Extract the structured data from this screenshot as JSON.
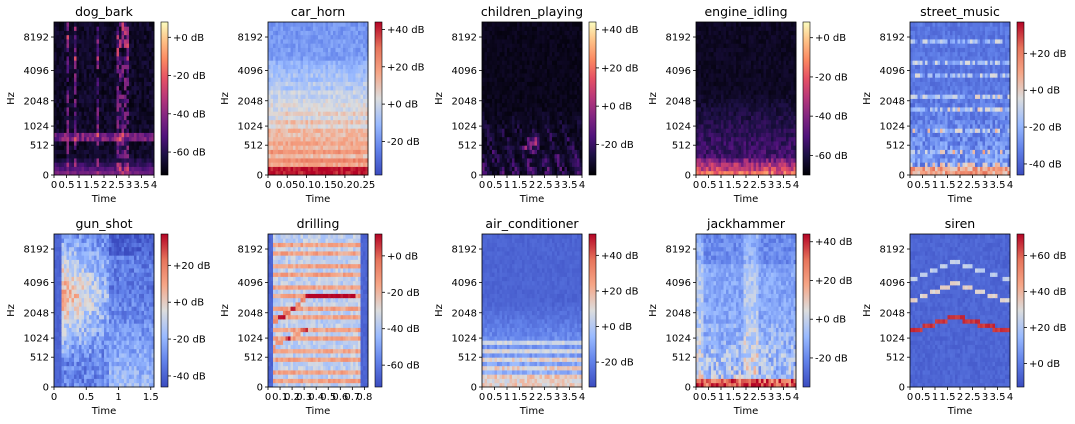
{
  "chart_data": [
    {
      "type": "heatmap",
      "title": "dog_bark",
      "xlabel": "Time",
      "ylabel": "Hz",
      "x_ticks": [
        "0",
        "0.5",
        "1",
        "1.5",
        "2",
        "2.5",
        "3",
        "3.5",
        "4"
      ],
      "xlim": [
        0,
        4
      ],
      "y_ticks": [
        "0",
        "512",
        "1024",
        "2048",
        "4096",
        "8192"
      ],
      "y_scale": "mel",
      "colormap": "magma",
      "colorbar_ticks": [
        "+0 dB",
        "-20 dB",
        "-40 dB",
        "-60 dB"
      ],
      "colorbar_range_db": [
        -72,
        8
      ]
    },
    {
      "type": "heatmap",
      "title": "car_horn",
      "xlabel": "Time",
      "ylabel": "Hz",
      "x_ticks": [
        "0",
        "0.05",
        "0.1",
        "0.15",
        "0.2",
        "0.25"
      ],
      "xlim": [
        0,
        0.26
      ],
      "y_ticks": [
        "0",
        "512",
        "1024",
        "2048",
        "4096",
        "8192"
      ],
      "y_scale": "mel",
      "colormap": "coolwarm",
      "colorbar_ticks": [
        "+40 dB",
        "+20 dB",
        "+0 dB",
        "-20 dB"
      ],
      "colorbar_range_db": [
        -38,
        44
      ]
    },
    {
      "type": "heatmap",
      "title": "children_playing",
      "xlabel": "Time",
      "ylabel": "Hz",
      "x_ticks": [
        "0",
        "0.5",
        "1",
        "1.5",
        "2",
        "2.5",
        "3",
        "3.5",
        "4"
      ],
      "xlim": [
        0,
        4
      ],
      "y_ticks": [
        "0",
        "512",
        "1024",
        "2048",
        "4096",
        "8192"
      ],
      "y_scale": "mel",
      "colormap": "magma",
      "colorbar_ticks": [
        "+40 dB",
        "+20 dB",
        "+0 dB",
        "-20 dB"
      ],
      "colorbar_range_db": [
        -36,
        44
      ]
    },
    {
      "type": "heatmap",
      "title": "engine_idling",
      "xlabel": "Time",
      "ylabel": "Hz",
      "x_ticks": [
        "0",
        "0.5",
        "1",
        "1.5",
        "2",
        "2.5",
        "3",
        "3.5",
        "4"
      ],
      "xlim": [
        0,
        4
      ],
      "y_ticks": [
        "0",
        "512",
        "1024",
        "2048",
        "4096",
        "8192"
      ],
      "y_scale": "mel",
      "colormap": "magma",
      "colorbar_ticks": [
        "+0 dB",
        "-20 dB",
        "-40 dB",
        "-60 dB"
      ],
      "colorbar_range_db": [
        -70,
        8
      ]
    },
    {
      "type": "heatmap",
      "title": "street_music",
      "xlabel": "Time",
      "ylabel": "Hz",
      "x_ticks": [
        "0",
        "0.5",
        "1",
        "1.5",
        "2",
        "2.5",
        "3",
        "3.5",
        "4"
      ],
      "xlim": [
        0,
        4
      ],
      "y_ticks": [
        "0",
        "512",
        "1024",
        "2048",
        "4096",
        "8192"
      ],
      "y_scale": "mel",
      "colormap": "coolwarm",
      "colorbar_ticks": [
        "+20 dB",
        "+0 dB",
        "-20 dB",
        "-40 dB"
      ],
      "colorbar_range_db": [
        -46,
        37
      ]
    },
    {
      "type": "heatmap",
      "title": "gun_shot",
      "xlabel": "Time",
      "ylabel": "Hz",
      "x_ticks": [
        "0",
        "0.5",
        "1",
        "1.5"
      ],
      "xlim": [
        0,
        1.55
      ],
      "y_ticks": [
        "0",
        "512",
        "1024",
        "2048",
        "4096",
        "8192"
      ],
      "y_scale": "mel",
      "colormap": "coolwarm",
      "colorbar_ticks": [
        "+20 dB",
        "+0 dB",
        "-20 dB",
        "-40 dB"
      ],
      "colorbar_range_db": [
        -46,
        37
      ]
    },
    {
      "type": "heatmap",
      "title": "drilling",
      "xlabel": "Time",
      "ylabel": "Hz",
      "x_ticks": [
        "0",
        "0.1",
        "0.2",
        "0.3",
        "0.4",
        "0.5",
        "0.6",
        "0.7",
        "0.8"
      ],
      "xlim": [
        0,
        0.83
      ],
      "y_ticks": [
        "0",
        "512",
        "1024",
        "2048",
        "4096",
        "8192"
      ],
      "y_scale": "mel",
      "colormap": "coolwarm",
      "colorbar_ticks": [
        "+0 dB",
        "-20 dB",
        "-40 dB",
        "-60 dB"
      ],
      "colorbar_range_db": [
        -72,
        12
      ]
    },
    {
      "type": "heatmap",
      "title": "air_conditioner",
      "xlabel": "Time",
      "ylabel": "Hz",
      "x_ticks": [
        "0",
        "0.5",
        "1",
        "1.5",
        "2",
        "2.5",
        "3",
        "3.5",
        "4"
      ],
      "xlim": [
        0,
        4
      ],
      "y_ticks": [
        "0",
        "512",
        "1024",
        "2048",
        "4096",
        "8192"
      ],
      "y_scale": "mel",
      "colormap": "coolwarm",
      "colorbar_ticks": [
        "+40 dB",
        "+20 dB",
        "+0 dB",
        "-20 dB"
      ],
      "colorbar_range_db": [
        -34,
        52
      ]
    },
    {
      "type": "heatmap",
      "title": "jackhammer",
      "xlabel": "Time",
      "ylabel": "Hz",
      "x_ticks": [
        "0",
        "0.5",
        "1",
        "1.5",
        "2",
        "2.5",
        "3",
        "3.5",
        "4"
      ],
      "xlim": [
        0,
        4
      ],
      "y_ticks": [
        "0",
        "512",
        "1024",
        "2048",
        "4096",
        "8192"
      ],
      "y_scale": "mel",
      "colormap": "coolwarm",
      "colorbar_ticks": [
        "+40 dB",
        "+20 dB",
        "+0 dB",
        "-20 dB"
      ],
      "colorbar_range_db": [
        -35,
        44
      ]
    },
    {
      "type": "heatmap",
      "title": "siren",
      "xlabel": "Time",
      "ylabel": "Hz",
      "x_ticks": [
        "0",
        "0.5",
        "1",
        "1.5",
        "2",
        "2.5",
        "3",
        "3.5",
        "4"
      ],
      "xlim": [
        0,
        4
      ],
      "y_ticks": [
        "0",
        "512",
        "1024",
        "2048",
        "4096",
        "8192"
      ],
      "y_scale": "mel",
      "colormap": "coolwarm",
      "colorbar_ticks": [
        "+60 dB",
        "+40 dB",
        "+20 dB",
        "+0 dB"
      ],
      "colorbar_range_db": [
        -13,
        72
      ]
    }
  ]
}
